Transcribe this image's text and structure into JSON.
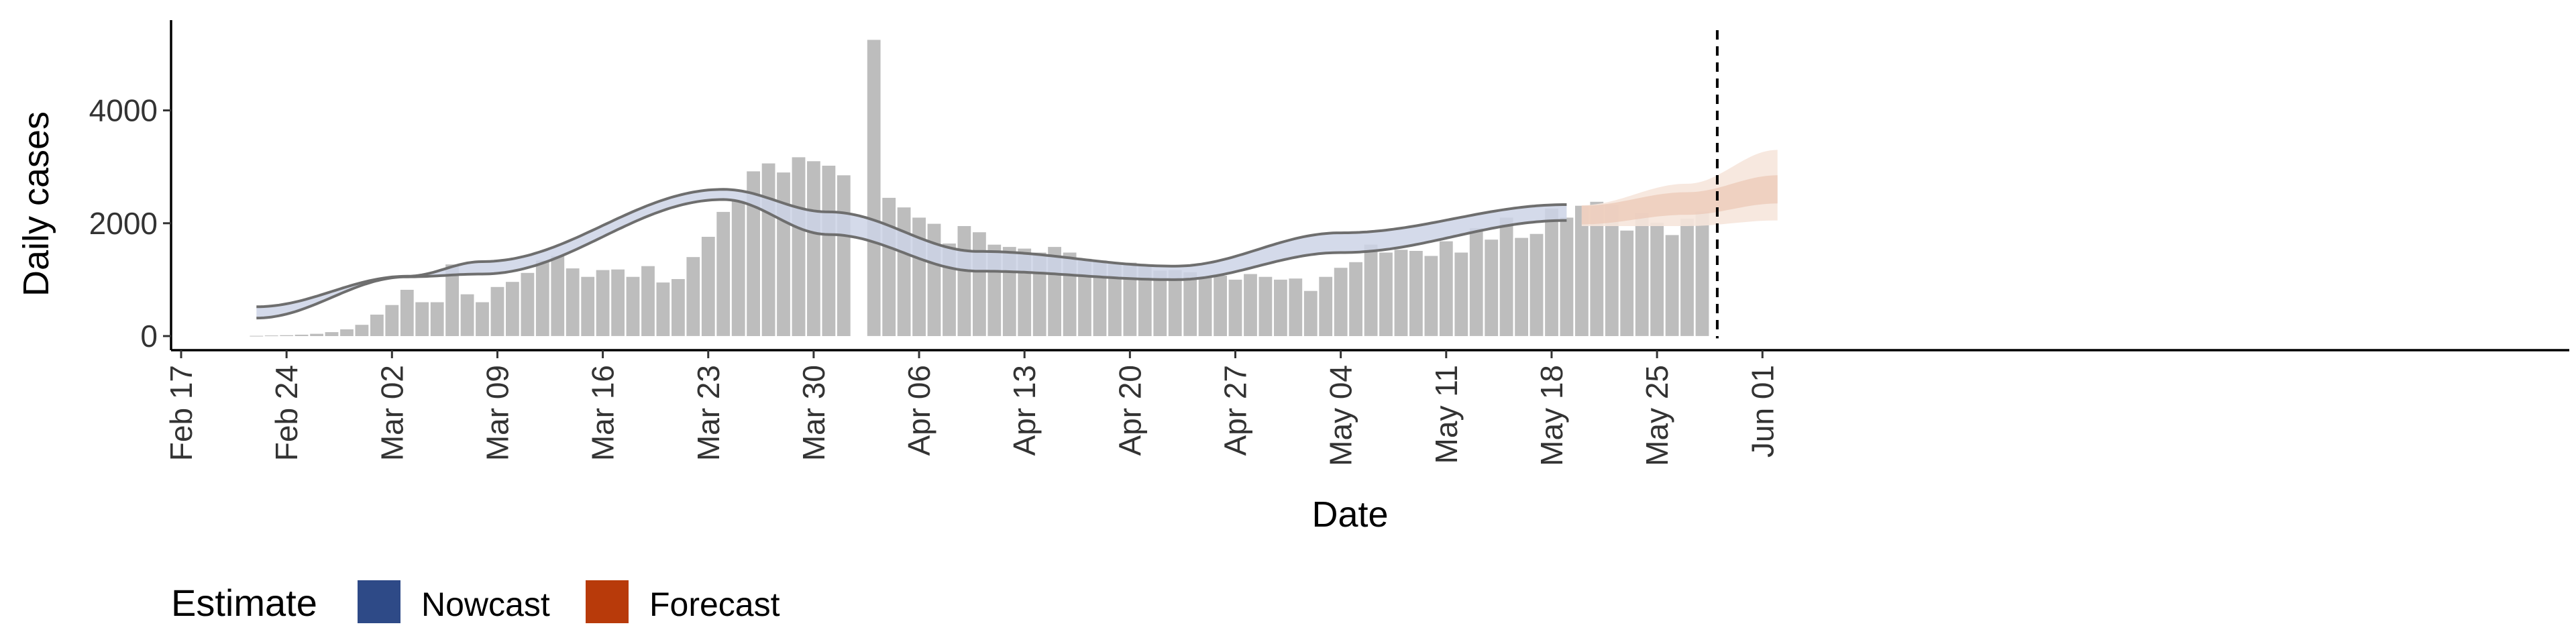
{
  "chart_data": {
    "type": "bar",
    "xlabel": "Date",
    "ylabel": "Daily cases",
    "ylim": [
      -250,
      5600
    ],
    "y_ticks": [
      0,
      2000,
      4000
    ],
    "x_ticks": [
      "Feb 17",
      "Feb 24",
      "Mar 02",
      "Mar 09",
      "Mar 16",
      "Mar 23",
      "Mar 30",
      "Apr 06",
      "Apr 13",
      "Apr 20",
      "Apr 27",
      "May 04",
      "May 11",
      "May 18",
      "May 25",
      "Jun 01"
    ],
    "reported_cases": {
      "start_date": "2020-02-22",
      "values": [
        5,
        10,
        15,
        25,
        40,
        70,
        120,
        200,
        380,
        550,
        820,
        600,
        600,
        1270,
        740,
        600,
        870,
        960,
        1120,
        1340,
        1420,
        1200,
        1050,
        1170,
        1180,
        1050,
        1240,
        950,
        1010,
        1400,
        1760,
        2200,
        2400,
        2920,
        3060,
        2900,
        3170,
        3100,
        3020,
        2850,
        0,
        5250,
        2450,
        2280,
        2100,
        1990,
        1640,
        1950,
        1840,
        1620,
        1580,
        1550,
        1480,
        1580,
        1480,
        1370,
        1340,
        1280,
        1300,
        1260,
        1160,
        1170,
        1130,
        1040,
        1070,
        1000,
        1100,
        1050,
        1000,
        1020,
        800,
        1050,
        1210,
        1310,
        1620,
        1480,
        1530,
        1510,
        1420,
        1680,
        1480,
        1910,
        1710,
        2100,
        1740,
        1810,
        2260,
        2100,
        2310,
        2380,
        2320,
        1870,
        2180,
        2010,
        1790,
        2080,
        2200
      ]
    },
    "nowcast": {
      "start_date": "2020-02-22",
      "end_date": "2020-05-19",
      "lower_bound": [
        320,
        1050,
        1100,
        2420,
        1800,
        1150,
        1000,
        1480,
        2050
      ],
      "upper_bound": [
        520,
        1060,
        1320,
        2600,
        2200,
        1500,
        1240,
        1830,
        2330
      ],
      "knot_dates": [
        "2020-02-22",
        "2020-03-03",
        "2020-03-08",
        "2020-03-24",
        "2020-03-31",
        "2020-04-10",
        "2020-04-23",
        "2020-05-04",
        "2020-05-19"
      ]
    },
    "forecast": {
      "start_date": "2020-05-20",
      "end_date": "2020-06-02",
      "inner_lower": [
        1980,
        2150,
        2350
      ],
      "inner_upper": [
        2310,
        2550,
        2850
      ],
      "outer_lower": [
        1950,
        1950,
        2050
      ],
      "outer_upper": [
        2320,
        2700,
        3300
      ],
      "knot_dates": [
        "2020-05-20",
        "2020-05-27",
        "2020-06-02"
      ]
    },
    "current_date_line": "2020-05-29",
    "legend": {
      "title": "Estimate",
      "placement": "bottom-left",
      "entries": [
        {
          "name": "Nowcast",
          "color": "#2e4a87"
        },
        {
          "name": "Forecast",
          "color": "#b83a0a"
        }
      ]
    },
    "colors": {
      "bars": "#bdbdbd",
      "nowcast_band": "#cdd4e6",
      "nowcast_outline": "#6e6e6e",
      "forecast_band_outer": "#f6e5dc",
      "forecast_band_inner": "#eccbb9",
      "axis": "#000000"
    }
  }
}
